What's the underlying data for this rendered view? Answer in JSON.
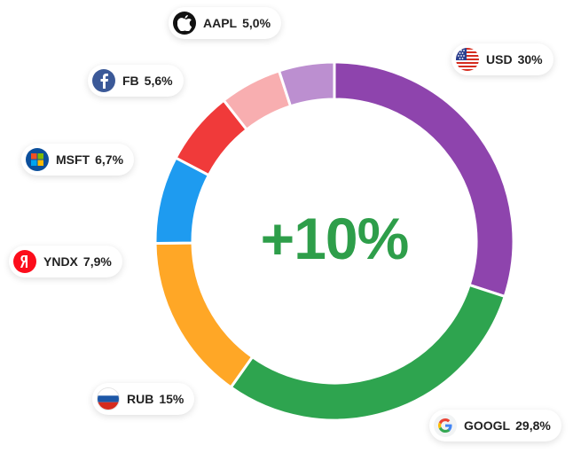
{
  "chart_data": {
    "type": "donut",
    "center_label": "+10%",
    "slices": [
      {
        "ticker": "USD",
        "share_label": "30%",
        "value": 30.0,
        "color": "#8e44ad",
        "icon": "us-flag-icon"
      },
      {
        "ticker": "GOOGL",
        "share_label": "29,8%",
        "value": 29.8,
        "color": "#2ea44f",
        "icon": "google-logo-icon"
      },
      {
        "ticker": "RUB",
        "share_label": "15%",
        "value": 15.0,
        "color": "#ffa726",
        "icon": "russia-flag-icon"
      },
      {
        "ticker": "YNDX",
        "share_label": "7,9%",
        "value": 7.9,
        "color": "#1e9bf0",
        "icon": "yandex-logo-icon"
      },
      {
        "ticker": "MSFT",
        "share_label": "6,7%",
        "value": 6.7,
        "color": "#f03a3a",
        "icon": "windows-logo-icon"
      },
      {
        "ticker": "FB",
        "share_label": "5,6%",
        "value": 5.6,
        "color": "#f8aeb0",
        "icon": "facebook-logo-icon"
      },
      {
        "ticker": "AAPL",
        "share_label": "5,0%",
        "value": 5.0,
        "color": "#bc8fd0",
        "icon": "apple-logo-icon"
      }
    ]
  }
}
